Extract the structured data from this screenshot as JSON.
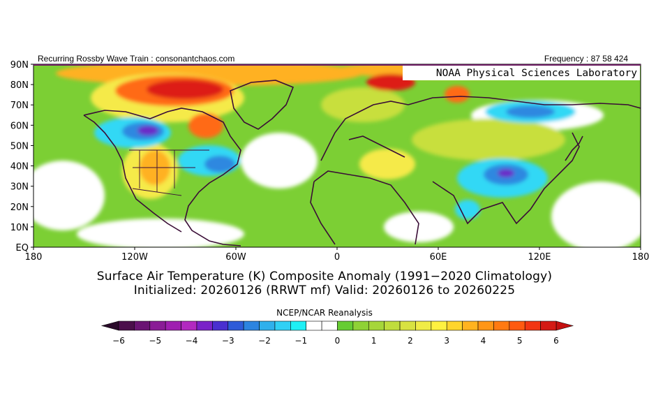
{
  "header": {
    "left": "Recurring Rossby Wave Train : consonantchaos.com",
    "right": "Frequency : 87 58 424",
    "badge": "NOAA Physical Sciences Laboratory"
  },
  "axes": {
    "y_ticks": [
      "90N",
      "80N",
      "70N",
      "60N",
      "50N",
      "40N",
      "30N",
      "20N",
      "10N",
      "EQ"
    ],
    "x_ticks": [
      "180",
      "120W",
      "60W",
      "0",
      "60E",
      "120E",
      "180"
    ]
  },
  "titles": {
    "line1": "Surface Air Temperature (K) Composite Anomaly (1991−2020 Climatology)",
    "line2": "Initialized: 20260126 (RRWT mf) Valid: 20260126 to 20260225"
  },
  "colorbar": {
    "title": "NCEP/NCAR Reanalysis",
    "labels": [
      "−6",
      "−5",
      "−4",
      "−3",
      "−2",
      "−1",
      "0",
      "1",
      "2",
      "3",
      "4",
      "5",
      "6"
    ],
    "colors": [
      "#4b0f4b",
      "#6a1473",
      "#8a1c96",
      "#9f1fb0",
      "#b22ac0",
      "#7a22c8",
      "#4a2fd0",
      "#2e5bd8",
      "#2c84e0",
      "#2fb0ec",
      "#30d0f5",
      "#1ef0f5",
      "#ffffff",
      "#ffffff",
      "#66cc33",
      "#8fd235",
      "#a6d63a",
      "#c0dd3d",
      "#d8e241",
      "#f0ec46",
      "#fff140",
      "#ffd52c",
      "#ffb31f",
      "#ff9617",
      "#ff7a12",
      "#ff5a10",
      "#f23612",
      "#d41a14"
    ],
    "arrow_colors": {
      "low": "#2a0a2a",
      "high": "#c41010"
    }
  },
  "palette": {
    "land_outline": "#3a0d36",
    "neutral": "#ffffff",
    "light_green": "#99dd44",
    "green": "#6cc830",
    "yellow_green": "#c8df3e",
    "yellow": "#f5ea48",
    "orange": "#ffb124",
    "red_orange": "#ff6a12",
    "red": "#dd1e12",
    "cyan": "#30d8f5",
    "blue": "#2e88e0",
    "purple": "#6a2ac8"
  }
}
